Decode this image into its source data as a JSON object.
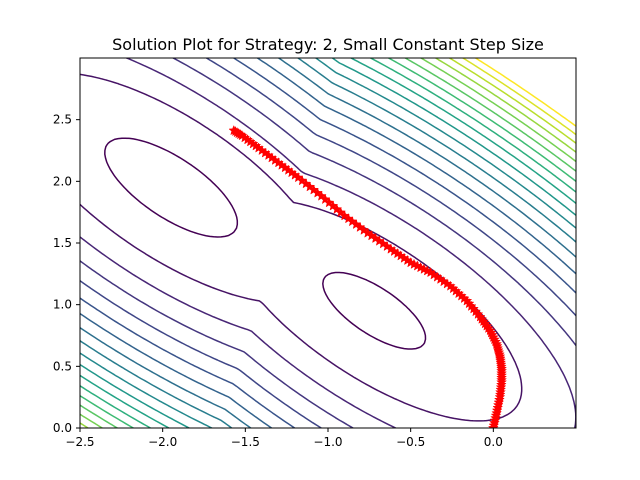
{
  "chart_data": {
    "type": "line",
    "title": "Solution Plot for Strategy: 2, Small Constant Step Size",
    "xlabel": "",
    "ylabel": "",
    "xlim": [
      -2.5,
      0.5
    ],
    "ylim": [
      0.0,
      3.0
    ],
    "x_ticks": [
      -2.5,
      -2.0,
      -1.5,
      -1.0,
      -0.5,
      0.0
    ],
    "x_tick_labels": [
      "−2.5",
      "−2.0",
      "−1.5",
      "−1.0",
      "−0.5",
      "0.0"
    ],
    "y_ticks": [
      0.0,
      0.5,
      1.0,
      1.5,
      2.0,
      2.5
    ],
    "y_tick_labels": [
      "0.0",
      "0.5",
      "1.0",
      "1.5",
      "2.0",
      "2.5"
    ],
    "grid": false,
    "legend": "none",
    "contour": {
      "colormap": "viridis",
      "level_count": 20,
      "colors": [
        "#440154",
        "#482878",
        "#3e4989",
        "#31688e",
        "#26828e",
        "#1f9e89",
        "#35b779",
        "#6ece58",
        "#b5de2b",
        "#fde725"
      ]
    },
    "series": [
      {
        "marker": "star",
        "color": "#ff0000",
        "x": [
          0.0,
          0.02,
          0.04,
          0.05,
          0.05,
          0.04,
          0.02,
          -0.02,
          -0.08,
          -0.16,
          -0.26,
          -0.38,
          -0.5,
          -0.62,
          -0.76,
          -0.9,
          -1.04,
          -1.18,
          -1.3,
          -1.42,
          -1.52,
          -1.58
        ],
        "y": [
          0.0,
          0.12,
          0.25,
          0.37,
          0.48,
          0.58,
          0.68,
          0.79,
          0.9,
          1.03,
          1.15,
          1.26,
          1.34,
          1.45,
          1.58,
          1.72,
          1.88,
          2.03,
          2.15,
          2.27,
          2.37,
          2.42
        ]
      }
    ]
  }
}
